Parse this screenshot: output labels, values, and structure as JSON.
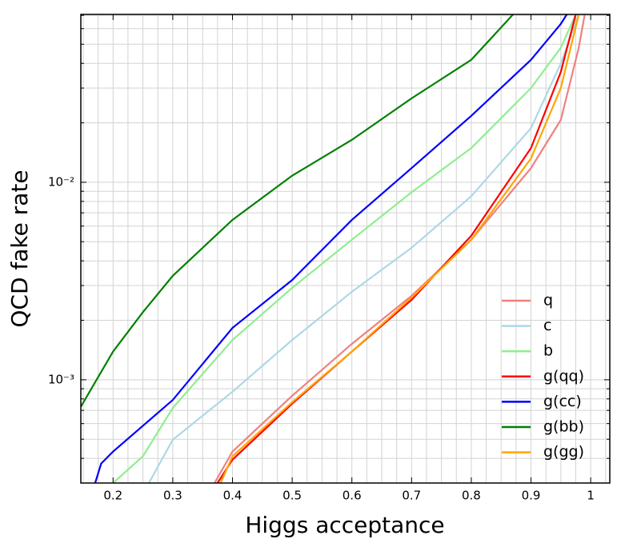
{
  "chart_data": {
    "type": "line",
    "xlabel": "Higgs acceptance",
    "ylabel": "QCD fake rate",
    "xlim": [
      0.146,
      1.032
    ],
    "ylim": [
      0.0003,
      0.0708
    ],
    "log_y": true,
    "grid": true,
    "legend": "lower right",
    "xticks": [
      0.2,
      0.3,
      0.4,
      0.5,
      0.6,
      0.7,
      0.8,
      0.9,
      1.0
    ],
    "yticks": [
      {
        "value": 0.001,
        "label": "10⁻³"
      },
      {
        "value": 0.01,
        "label": "10⁻²"
      }
    ],
    "minor_xticks": [
      0.15,
      0.175,
      0.225,
      0.25,
      0.275,
      0.325,
      0.35,
      0.375,
      0.425,
      0.45,
      0.475,
      0.525,
      0.55,
      0.575,
      0.625,
      0.65,
      0.675,
      0.725,
      0.75,
      0.775,
      0.825,
      0.85,
      0.875,
      0.925,
      0.95,
      0.975,
      1.025
    ],
    "minor_yticks": [
      0.0004,
      0.0005,
      0.0006,
      0.0007,
      0.0008,
      0.0009,
      0.002,
      0.003,
      0.004,
      0.005,
      0.006,
      0.007,
      0.008,
      0.009,
      0.02,
      0.03,
      0.04,
      0.05,
      0.06,
      0.07
    ],
    "series": [
      {
        "name": "q",
        "color": "#f08080",
        "x": [
          0.37,
          0.4,
          0.5,
          0.6,
          0.7,
          0.8,
          0.9,
          0.95,
          0.98,
          0.99
        ],
        "values": [
          0.0003,
          0.000433,
          0.00083,
          0.00152,
          0.00266,
          0.00512,
          0.0118,
          0.0207,
          0.048,
          0.0708
        ]
      },
      {
        "name": "c",
        "color": "#add8e6",
        "x": [
          0.26,
          0.3,
          0.4,
          0.5,
          0.6,
          0.7,
          0.8,
          0.9,
          0.95,
          0.98
        ],
        "values": [
          0.0003,
          0.000497,
          0.00087,
          0.00159,
          0.00279,
          0.00466,
          0.0085,
          0.0188,
          0.04,
          0.0708
        ]
      },
      {
        "name": "b",
        "color": "#90ee90",
        "x": [
          0.2,
          0.25,
          0.3,
          0.4,
          0.5,
          0.6,
          0.7,
          0.8,
          0.9,
          0.95,
          0.975
        ],
        "values": [
          0.0003,
          0.00041,
          0.00072,
          0.00159,
          0.00292,
          0.00512,
          0.0089,
          0.0149,
          0.03,
          0.048,
          0.0708
        ]
      },
      {
        "name": "g(qq)",
        "color": "#ff0000",
        "x": [
          0.375,
          0.4,
          0.5,
          0.6,
          0.7,
          0.8,
          0.9,
          0.95,
          0.975
        ],
        "values": [
          0.0003,
          0.000394,
          0.000757,
          0.00139,
          0.00254,
          0.00536,
          0.0149,
          0.0362,
          0.0708
        ]
      },
      {
        "name": "g(cc)",
        "color": "#0000ff",
        "x": [
          0.17,
          0.18,
          0.2,
          0.3,
          0.4,
          0.5,
          0.6,
          0.7,
          0.8,
          0.9,
          0.95,
          0.96
        ],
        "values": [
          0.0003,
          0.000376,
          0.000433,
          0.00079,
          0.00183,
          0.0032,
          0.00645,
          0.0118,
          0.0217,
          0.0417,
          0.0634,
          0.0708
        ]
      },
      {
        "name": "g(bb)",
        "color": "#008000",
        "x": [
          0.146,
          0.2,
          0.25,
          0.3,
          0.4,
          0.5,
          0.6,
          0.7,
          0.8,
          0.87
        ],
        "values": [
          0.00073,
          0.00139,
          0.0022,
          0.00336,
          0.00645,
          0.0108,
          0.0164,
          0.0266,
          0.0417,
          0.0708
        ]
      },
      {
        "name": "g(gg)",
        "color": "#ffa500",
        "x": [
          0.38,
          0.4,
          0.5,
          0.6,
          0.7,
          0.8,
          0.9,
          0.95,
          0.98
        ],
        "values": [
          0.0003,
          0.00041,
          0.00077,
          0.00139,
          0.00261,
          0.00512,
          0.0132,
          0.03,
          0.0708
        ]
      }
    ]
  }
}
